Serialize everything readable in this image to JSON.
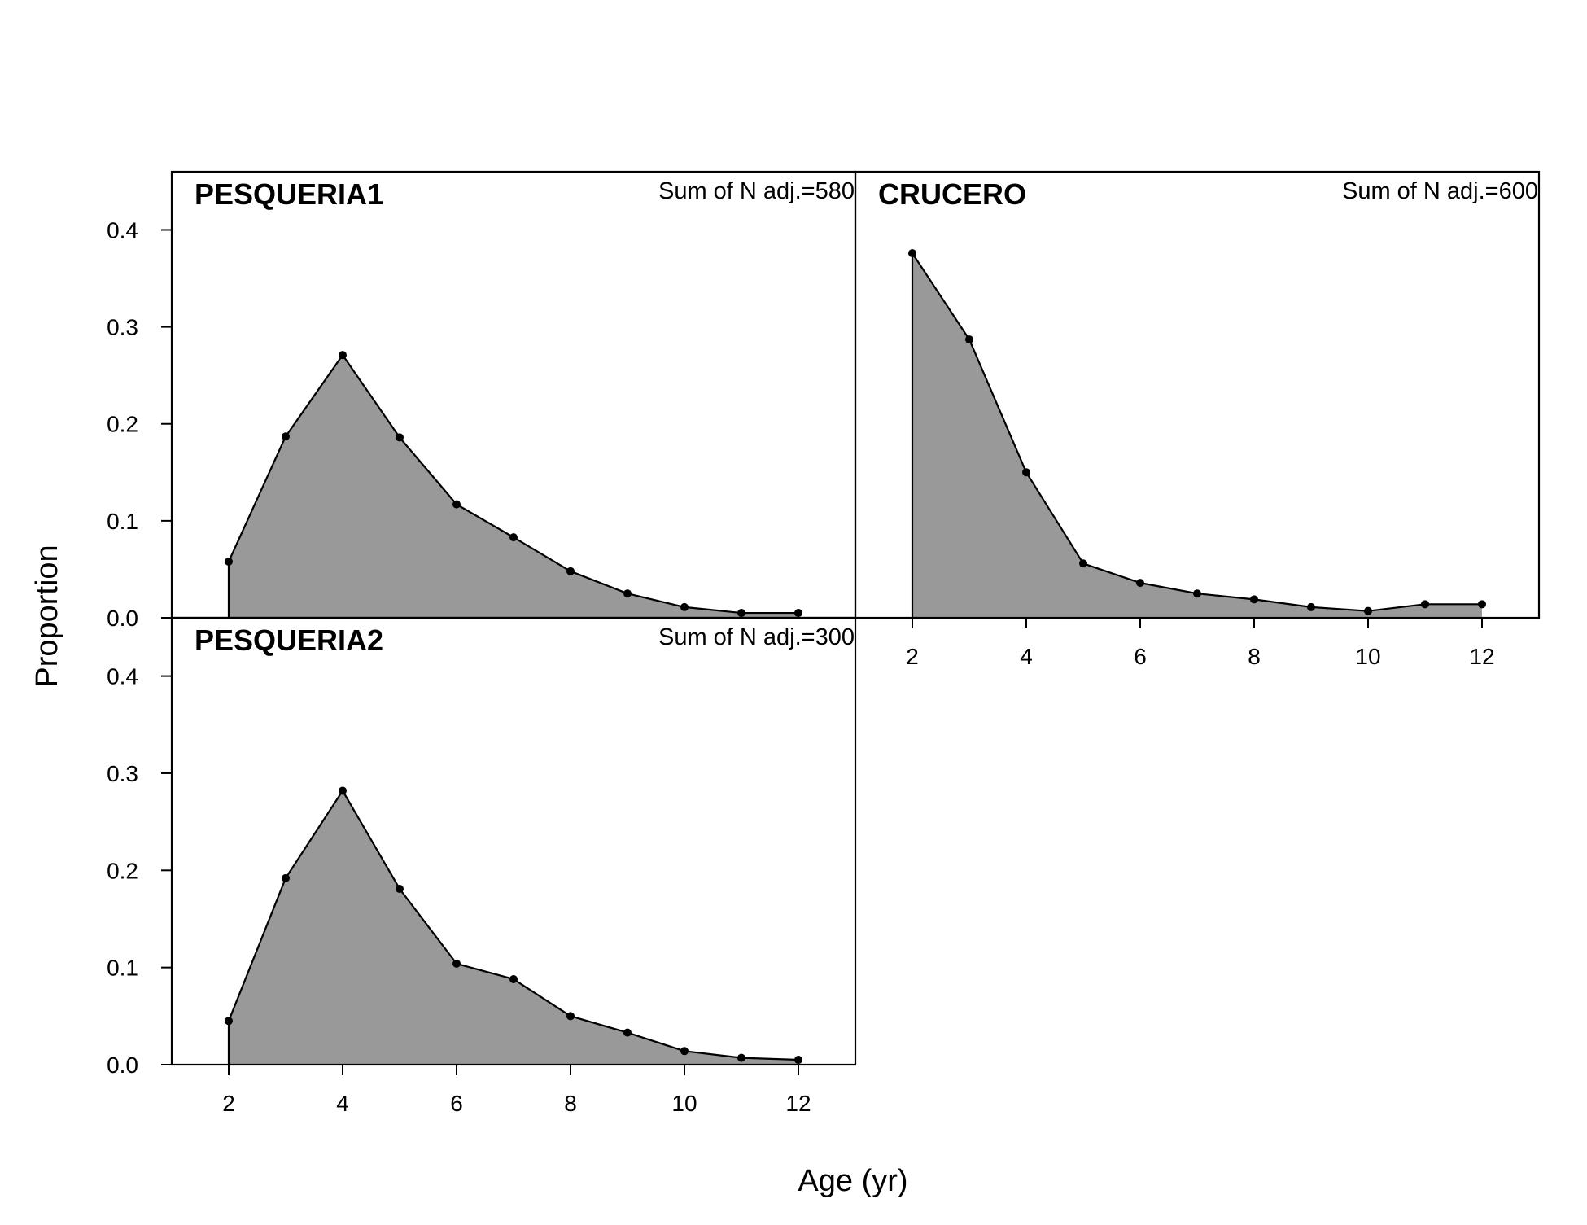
{
  "chart_data": {
    "type": "area",
    "layout": "2x2 panels, shared axes",
    "xlabel": "Age (yr)",
    "ylabel": "Proportion",
    "xlim": [
      1,
      13
    ],
    "ylim": [
      0,
      0.46
    ],
    "x_ticks": [
      2,
      4,
      6,
      8,
      10,
      12
    ],
    "y_ticks": [
      0.0,
      0.1,
      0.2,
      0.3,
      0.4
    ],
    "y_tick_labels": [
      "0.0",
      "0.1",
      "0.2",
      "0.3",
      "0.4"
    ],
    "grid": false,
    "fill_color": "#999999",
    "line_color": "#000000",
    "x": [
      2,
      3,
      4,
      5,
      6,
      7,
      8,
      9,
      10,
      11,
      12
    ],
    "panels": [
      {
        "title": "PESQUERIA1",
        "note": "Sum of N adj.=580",
        "position": "top-left",
        "values": [
          0.058,
          0.187,
          0.271,
          0.186,
          0.117,
          0.083,
          0.048,
          0.025,
          0.011,
          0.005,
          0.005
        ]
      },
      {
        "title": "CRUCERO",
        "note": "Sum of N adj.=600",
        "position": "top-right",
        "values": [
          0.376,
          0.287,
          0.15,
          0.056,
          0.036,
          0.025,
          0.019,
          0.011,
          0.007,
          0.014,
          0.014
        ]
      },
      {
        "title": "PESQUERIA2",
        "note": "Sum of N adj.=300",
        "position": "bottom-left",
        "values": [
          0.045,
          0.192,
          0.282,
          0.181,
          0.104,
          0.088,
          0.05,
          0.033,
          0.014,
          0.007,
          0.005
        ]
      }
    ]
  }
}
